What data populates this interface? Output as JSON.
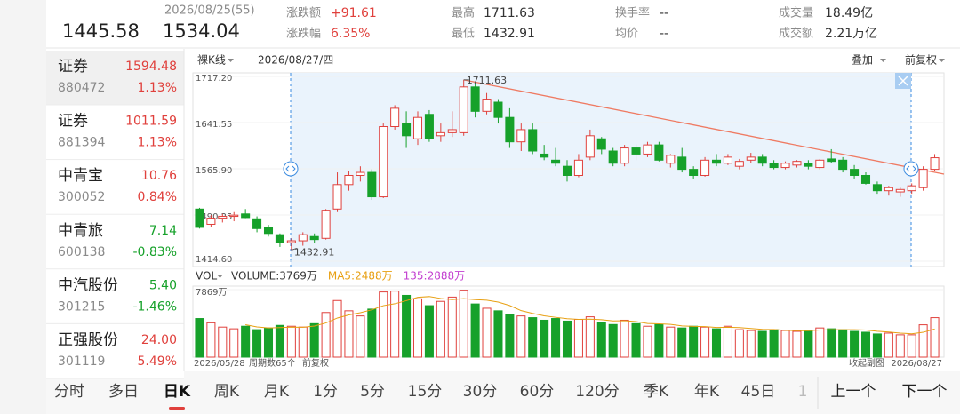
{
  "header": {
    "date_label": "2026/08/25(55)",
    "price_1": "1445.58",
    "price_2": "1534.04",
    "stats": [
      {
        "label": "涨跌额",
        "value": "+91.61"
      },
      {
        "label": "涨跌幅",
        "value": "6.35%"
      },
      {
        "label": "最高",
        "value": "1711.63"
      },
      {
        "label": "最低",
        "value": "1432.91"
      },
      {
        "label": "换手率",
        "value": "--"
      },
      {
        "label": "均价",
        "value": "--"
      },
      {
        "label": "成交量",
        "value": "18.49亿"
      },
      {
        "label": "成交额",
        "value": "2.21万亿"
      }
    ]
  },
  "watchlist": [
    {
      "name": "证券",
      "price": "1594.48",
      "code": "880472",
      "change": "1.13%"
    },
    {
      "name": "证券",
      "price": "1011.59",
      "code": "881394",
      "change": "1.13%"
    },
    {
      "name": "中青宝",
      "price": "10.76",
      "code": "300052",
      "change": "0.84%"
    },
    {
      "name": "中青旅",
      "price": "7.14",
      "code": "600138",
      "change": "-0.83%"
    },
    {
      "name": "中汽股份",
      "price": "5.40",
      "code": "301215",
      "change": "-1.46%"
    },
    {
      "name": "正强股份",
      "price": "24.00",
      "code": "301119",
      "change": "5.49%"
    }
  ],
  "chart_data": [
    {
      "type": "candlestick",
      "mode_label": "裸K线",
      "date_label": "2026/08/27/四",
      "overlay_label": "叠加",
      "adjust_label": "前复权",
      "up_color": "#e0403c",
      "down_color": "#16a12a",
      "ylim": [
        1414.6,
        1717.2
      ],
      "yticks": [
        {
          "value": 1717.2,
          "label": "1717.20"
        },
        {
          "value": 1641.55,
          "label": "1641.55"
        },
        {
          "value": 1565.9,
          "label": "1565.90"
        },
        {
          "value": 1490.25,
          "label": "1490.25"
        },
        {
          "value": 1414.6,
          "label": "1414.60"
        }
      ],
      "annotations": [
        {
          "value": 1711.63,
          "label": "1711.63",
          "at": "high"
        },
        {
          "value": 1432.91,
          "label": "1432.91",
          "at": "low"
        }
      ],
      "ohlc": [
        [
          1500,
          1502,
          1468,
          1470
        ],
        [
          1475,
          1490,
          1470,
          1485
        ],
        [
          1485,
          1492,
          1478,
          1488
        ],
        [
          1488,
          1495,
          1480,
          1490
        ],
        [
          1492,
          1500,
          1485,
          1486
        ],
        [
          1484,
          1488,
          1462,
          1468
        ],
        [
          1470,
          1474,
          1455,
          1460
        ],
        [
          1458,
          1460,
          1438,
          1445
        ],
        [
          1445,
          1452,
          1432.91,
          1448
        ],
        [
          1448,
          1462,
          1440,
          1458
        ],
        [
          1455,
          1460,
          1445,
          1450
        ],
        [
          1452,
          1500,
          1450,
          1498
        ],
        [
          1500,
          1560,
          1495,
          1540
        ],
        [
          1540,
          1562,
          1530,
          1555
        ],
        [
          1555,
          1570,
          1545,
          1560
        ],
        [
          1560,
          1565,
          1515,
          1520
        ],
        [
          1520,
          1640,
          1518,
          1635
        ],
        [
          1635,
          1670,
          1630,
          1665
        ],
        [
          1640,
          1660,
          1600,
          1620
        ],
        [
          1615,
          1660,
          1605,
          1650
        ],
        [
          1655,
          1662,
          1610,
          1615
        ],
        [
          1620,
          1640,
          1610,
          1625
        ],
        [
          1625,
          1660,
          1618,
          1630
        ],
        [
          1625,
          1711.63,
          1620,
          1700
        ],
        [
          1700,
          1705,
          1650,
          1660
        ],
        [
          1660,
          1690,
          1655,
          1680
        ],
        [
          1675,
          1680,
          1640,
          1650
        ],
        [
          1650,
          1665,
          1600,
          1610
        ],
        [
          1610,
          1640,
          1595,
          1630
        ],
        [
          1630,
          1640,
          1590,
          1595
        ],
        [
          1590,
          1605,
          1580,
          1585
        ],
        [
          1580,
          1600,
          1570,
          1575
        ],
        [
          1570,
          1580,
          1545,
          1555
        ],
        [
          1555,
          1590,
          1552,
          1580
        ],
        [
          1585,
          1630,
          1580,
          1620
        ],
        [
          1615,
          1618,
          1590,
          1598
        ],
        [
          1595,
          1600,
          1570,
          1575
        ],
        [
          1575,
          1605,
          1570,
          1600
        ],
        [
          1600,
          1606,
          1580,
          1590
        ],
        [
          1590,
          1610,
          1585,
          1605
        ],
        [
          1605,
          1610,
          1578,
          1580
        ],
        [
          1575,
          1590,
          1568,
          1588
        ],
        [
          1585,
          1600,
          1560,
          1565
        ],
        [
          1565,
          1570,
          1550,
          1555
        ],
        [
          1555,
          1585,
          1553,
          1580
        ],
        [
          1580,
          1590,
          1570,
          1575
        ],
        [
          1575,
          1590,
          1572,
          1585
        ],
        [
          1570,
          1582,
          1565,
          1578
        ],
        [
          1580,
          1592,
          1575,
          1585
        ],
        [
          1585,
          1590,
          1570,
          1575
        ],
        [
          1575,
          1580,
          1565,
          1568
        ],
        [
          1568,
          1578,
          1565,
          1575
        ],
        [
          1572,
          1580,
          1568,
          1578
        ],
        [
          1575,
          1580,
          1565,
          1570
        ],
        [
          1568,
          1582,
          1565,
          1580
        ],
        [
          1582,
          1598,
          1575,
          1578
        ],
        [
          1580,
          1585,
          1560,
          1565
        ],
        [
          1565,
          1572,
          1550,
          1555
        ],
        [
          1555,
          1560,
          1540,
          1542
        ],
        [
          1540,
          1545,
          1525,
          1530
        ],
        [
          1530,
          1538,
          1522,
          1535
        ],
        [
          1528,
          1535,
          1520,
          1532
        ],
        [
          1530,
          1542,
          1525,
          1538
        ],
        [
          1535,
          1570,
          1530,
          1565
        ],
        [
          1565,
          1590,
          1562,
          1584
        ]
      ]
    },
    {
      "type": "bar",
      "label": "VOL",
      "readouts": [
        {
          "text": "VOLUME:3769万",
          "color": "#333333"
        },
        {
          "text": "MA5:2488万",
          "color": "#e8a013"
        },
        {
          "text": "135:2888万",
          "color": "#c23fd0"
        }
      ],
      "ma_color": "#e8a013",
      "ylim": [
        0,
        7869
      ],
      "yticks": [
        {
          "value": 7869,
          "label": "7869万"
        }
      ],
      "values": [
        4500,
        4000,
        3500,
        3300,
        3600,
        3200,
        3400,
        3700,
        3600,
        3500,
        3900,
        5200,
        6600,
        5400,
        4800,
        5600,
        7600,
        7700,
        7200,
        6800,
        6000,
        6500,
        7000,
        7800,
        6200,
        5700,
        5400,
        5000,
        4800,
        4600,
        4300,
        4500,
        4200,
        4400,
        4700,
        4000,
        3800,
        4300,
        3900,
        3600,
        3800,
        3500,
        3400,
        3600,
        3500,
        3300,
        3600,
        3200,
        3100,
        3000,
        3200,
        3100,
        3000,
        3100,
        3400,
        3300,
        3200,
        3000,
        2900,
        2700,
        2800,
        2600,
        2600,
        3769,
        4600
      ],
      "start_date": "2026/05/28",
      "period_count": "周期数65个",
      "adjust_label": "前复权",
      "collapse_label": "收起副图",
      "end_date": "2026/08/27"
    }
  ],
  "tabs": {
    "items": [
      "分时",
      "多日",
      "日K",
      "周K",
      "月K",
      "1分",
      "5分",
      "15分",
      "30分",
      "60分",
      "120分",
      "季K",
      "年K",
      "45日",
      "1"
    ],
    "active": "日K"
  },
  "nav": {
    "prev": "上一个",
    "next": "下一个"
  }
}
